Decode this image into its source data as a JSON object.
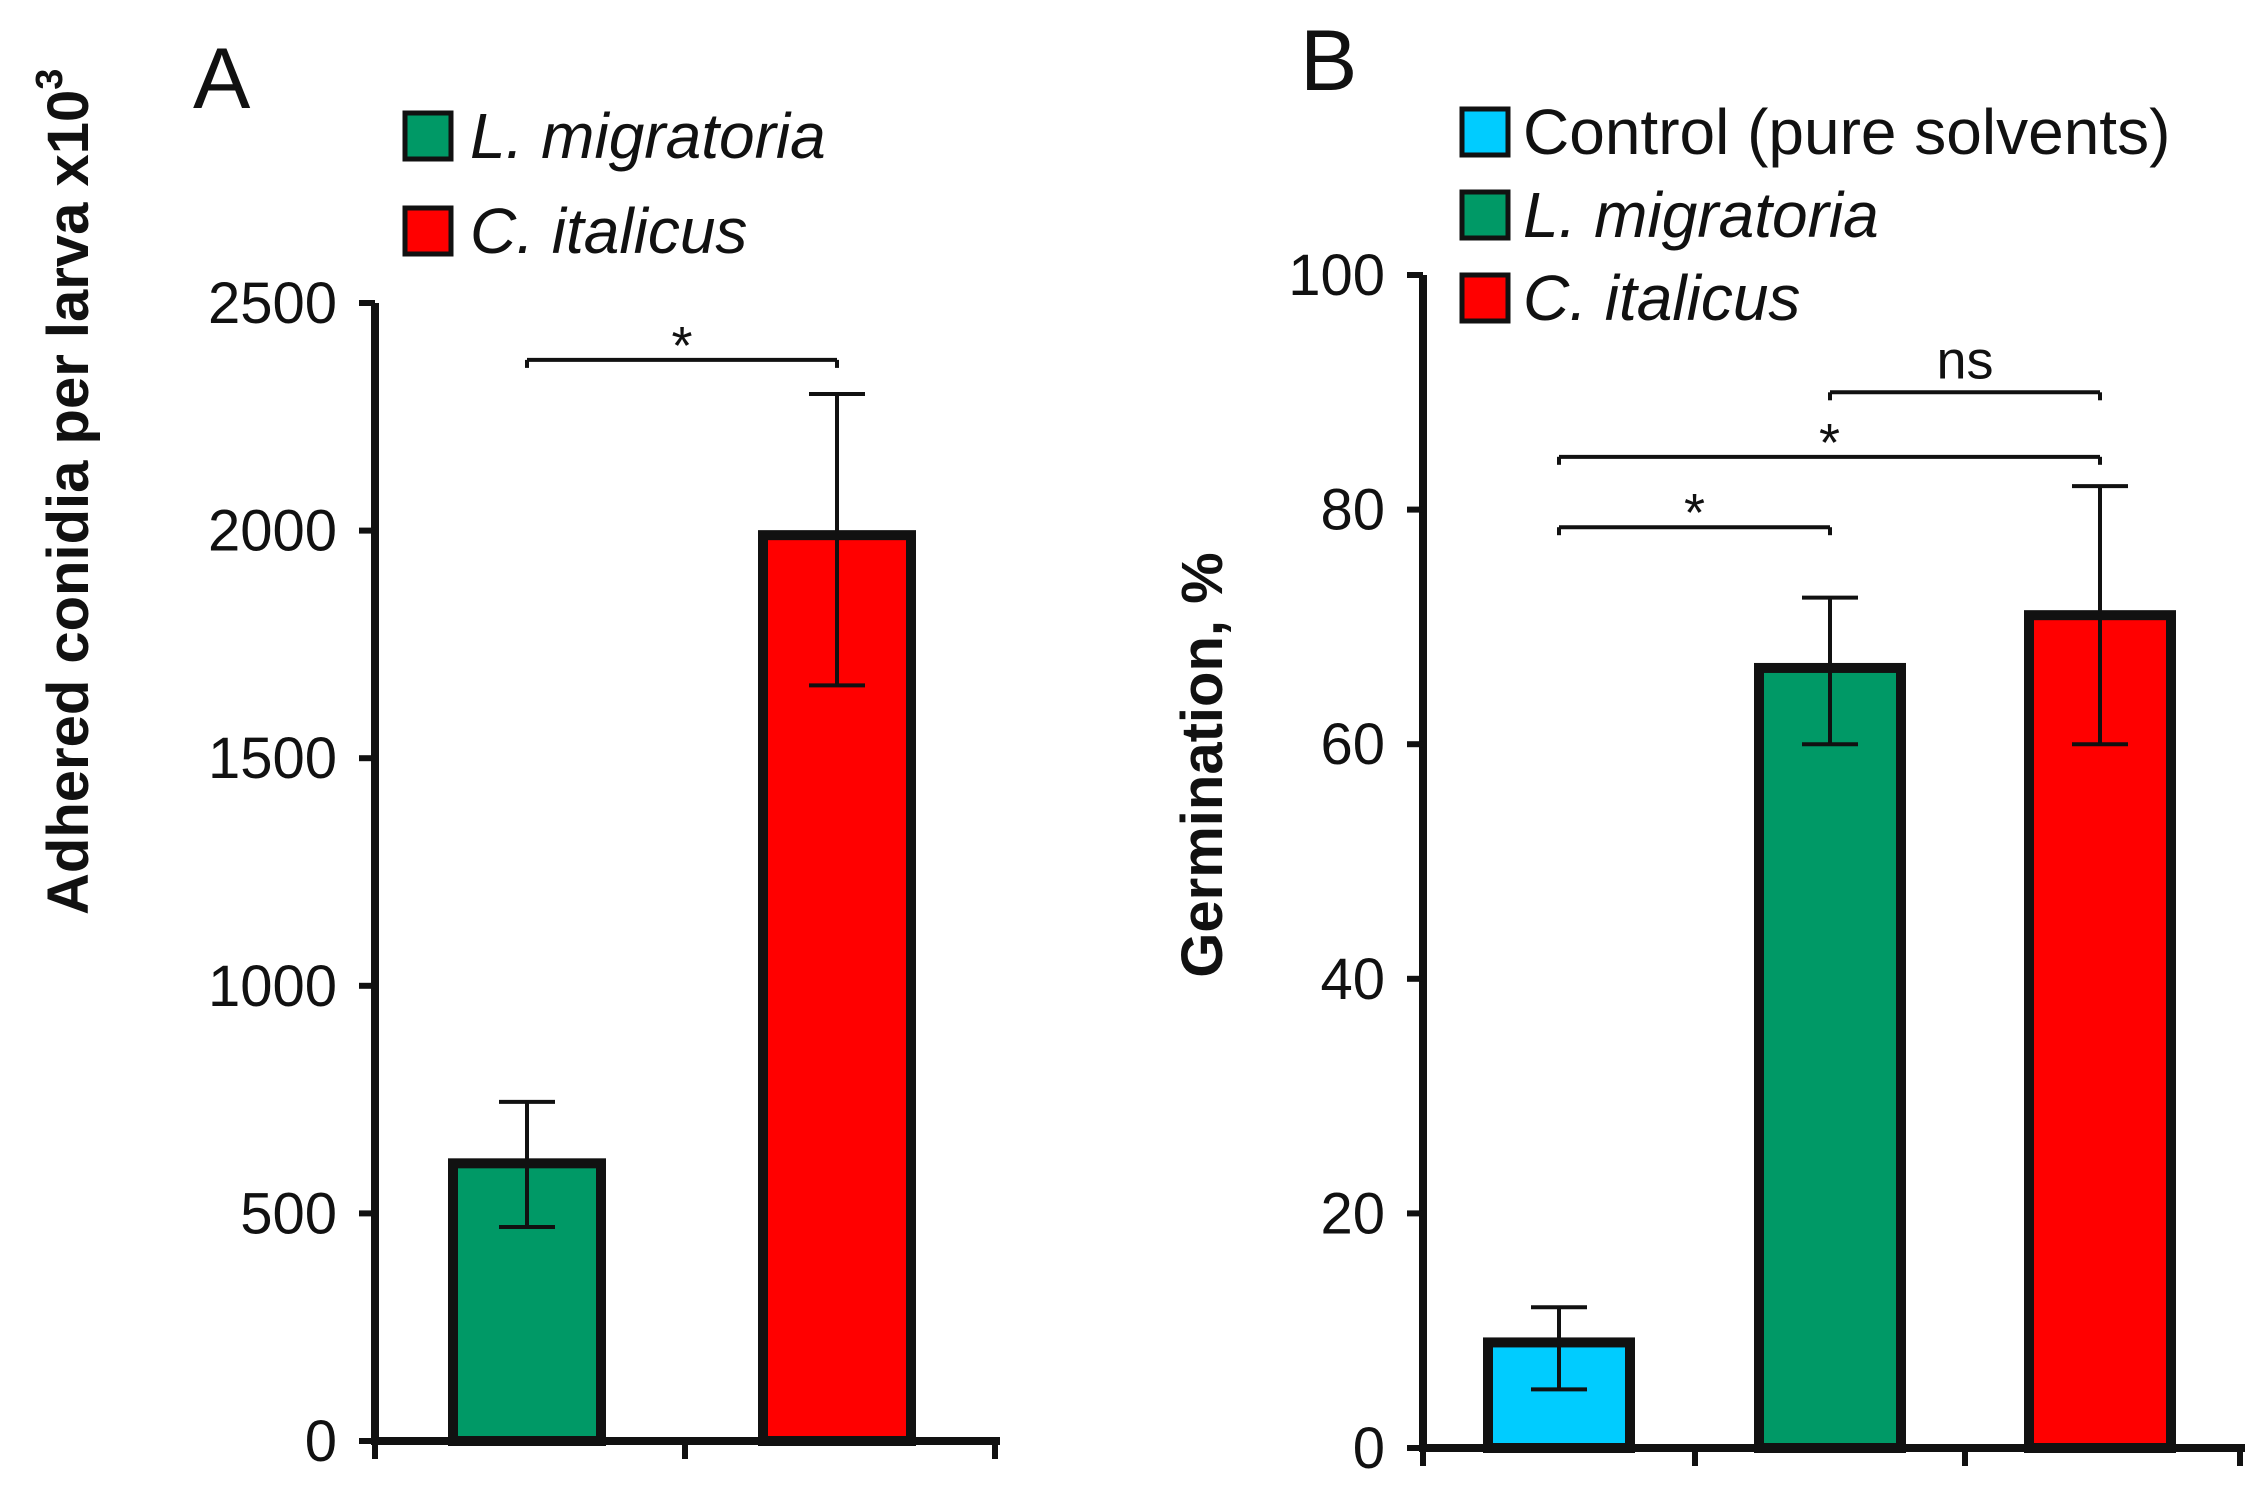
{
  "figure": {
    "panels": [
      "A",
      "B"
    ]
  },
  "chart_data": [
    {
      "type": "bar",
      "panel": "A",
      "title": "",
      "xlabel": "",
      "ylabel": "Adhered conidia per larva x10",
      "ylabel_superscript": "3",
      "ylim": [
        0,
        2500
      ],
      "yticks": [
        0,
        500,
        1000,
        1500,
        2000,
        2500
      ],
      "categories": [
        "L. migratoria",
        "C. italicus"
      ],
      "values": [
        610,
        1990
      ],
      "errors_low": [
        470,
        1660
      ],
      "errors_high": [
        745,
        2300
      ],
      "colors": [
        "#009966",
        "#ff0000"
      ],
      "legend": [
        {
          "label": "L. migratoria",
          "italic": true,
          "color": "#009966"
        },
        {
          "label": "C. italicus",
          "italic": true,
          "color": "#ff0000"
        }
      ],
      "significance": [
        {
          "from": 0,
          "to": 1,
          "label": "*",
          "level": 2375
        }
      ]
    },
    {
      "type": "bar",
      "panel": "B",
      "title": "",
      "xlabel": "",
      "ylabel": "Germination, %",
      "ylim": [
        0,
        100
      ],
      "yticks": [
        0,
        20,
        40,
        60,
        80,
        100
      ],
      "categories": [
        "Control (pure solvents)",
        "L. migratoria",
        "C. italicus"
      ],
      "values": [
        9,
        66.5,
        71
      ],
      "errors_low": [
        5,
        60,
        60
      ],
      "errors_high": [
        12,
        72.5,
        82
      ],
      "colors": [
        "#00ccff",
        "#009966",
        "#ff0000"
      ],
      "legend": [
        {
          "label": "Control (pure solvents)",
          "italic": false,
          "color": "#00ccff"
        },
        {
          "label": "L. migratoria",
          "italic": true,
          "color": "#009966"
        },
        {
          "label": "C. italicus",
          "italic": true,
          "color": "#ff0000"
        }
      ],
      "significance": [
        {
          "from": 0,
          "to": 1,
          "label": "*",
          "level": 78.5
        },
        {
          "from": 0,
          "to": 2,
          "label": "*",
          "level": 84.5
        },
        {
          "from": 1,
          "to": 2,
          "label": "ns",
          "level": 90
        }
      ]
    }
  ]
}
